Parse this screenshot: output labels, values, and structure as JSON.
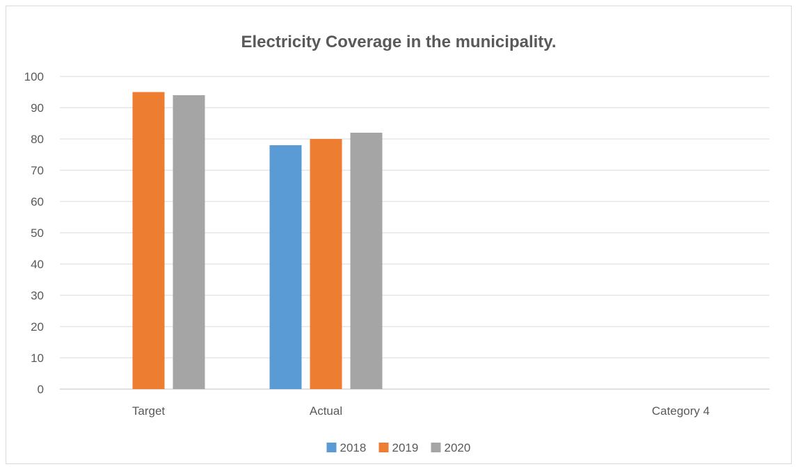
{
  "chart_data": {
    "type": "bar",
    "title": "Electricity Coverage in the municipality.",
    "categories": [
      "Target",
      "Actual",
      "",
      "Category 4"
    ],
    "series": [
      {
        "name": "2018",
        "color": "#5b9bd5",
        "values": [
          null,
          78,
          null,
          null
        ]
      },
      {
        "name": "2019",
        "color": "#ed7d31",
        "values": [
          95,
          80,
          null,
          null
        ]
      },
      {
        "name": "2020",
        "color": "#a5a5a5",
        "values": [
          94,
          82,
          null,
          null
        ]
      }
    ],
    "ylim": [
      0,
      100
    ],
    "yticks": [
      0,
      10,
      20,
      30,
      40,
      50,
      60,
      70,
      80,
      90,
      100
    ],
    "grid": true,
    "legend_position": "bottom"
  }
}
